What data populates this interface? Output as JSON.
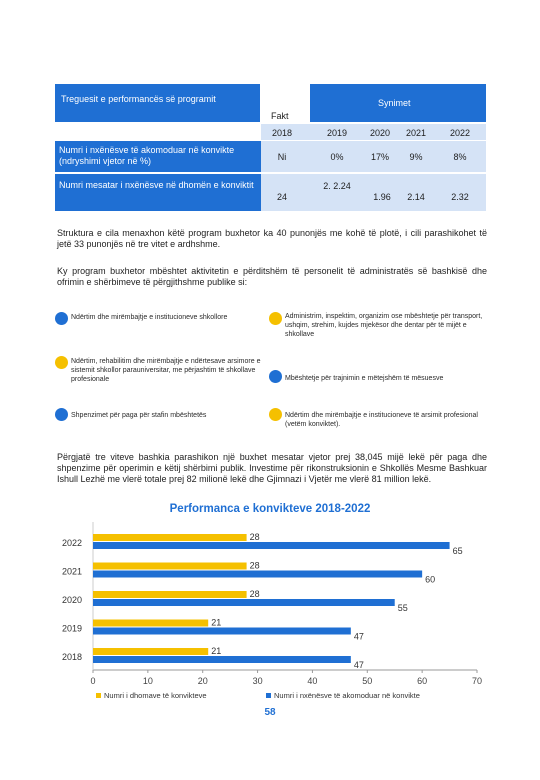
{
  "table": {
    "col_header_left": "Treguesit e performancës së programit",
    "col_header_targets": "Synimet",
    "col_fakt": "Fakt",
    "years": [
      "2018",
      "2019",
      "2020",
      "2021",
      "2022"
    ],
    "rows": [
      {
        "label": "Numri i nxënësve të akomoduar në konvikte (ndryshimi vjetor në %)",
        "values": [
          "Ni",
          "0%",
          "17%",
          "9%",
          "8%"
        ]
      },
      {
        "label": "Numri mesatar i nxënësve në dhomën e konviktit",
        "values": [
          "24",
          "2. 2.24",
          "1.96",
          "2.14",
          "2.32"
        ]
      }
    ]
  },
  "paragraphs": {
    "p1": "Struktura e cila menaxhon këtë program buxhetor ka 40 punonjës me kohë të plotë, i cili parashikohet të jetë 33 punonjës në tre vitet e ardhshme.",
    "p2": "Ky program buxhetor mbështet aktivitetin e përditshëm të personelit të administratës së bashkisë dhe ofrimin e shërbimeve të përgjithshme publike si:",
    "p3": "Përgjatë tre viteve bashkia parashikon një buxhet mesatar vjetor prej 38,045 mijë lekë për paga dhe shpenzime për operimin e këtij shërbimi publik. Investime për rikonstruksionin e Shkollës Mesme Bashkuar Ishull Lezhë me vlerë totale prej 82 milionë lekë dhe Gjimnazi i Vjetër me vlerë 81 million lekë."
  },
  "bullets": [
    {
      "text": "Ndërtim dhe mirëmbajtje e institucioneve shkollore",
      "color": "#1f6fd3"
    },
    {
      "text": "Administrim, inspektim, organizim ose mbështetje për transport, ushqim, strehim, kujdes mjekësor dhe dentar për të mijët e shkollave",
      "color": "#f5c000"
    },
    {
      "text": "Ndërtim, rehabilitim dhe mirëmbajtje e ndërtesave arsimore e sistemit shkollor parauniversitar, me përjashtim të shkollave profesionale",
      "color": "#f5c000"
    },
    {
      "text": "Mbështetje për trajnimin e mëtejshëm të mësuesve",
      "color": "#1f6fd3"
    },
    {
      "text": "Shpenzimet për paga për stafin mbështetës",
      "color": "#1f6fd3"
    },
    {
      "text": "Ndërtim dhe mirëmbajtje e institucioneve të arsimit profesional (vetëm konviktet).",
      "color": "#f5c000"
    }
  ],
  "chart_data": {
    "type": "bar",
    "orientation": "horizontal",
    "title": "Performanca e konvikteve 2018-2022",
    "categories": [
      "2022",
      "2021",
      "2020",
      "2019",
      "2018"
    ],
    "series": [
      {
        "name": "Numri i dhomave të konvikteve",
        "color": "#f5c000",
        "values": [
          28,
          28,
          28,
          21,
          21
        ]
      },
      {
        "name": "Numri i nxënësve të akomoduar në konvikte",
        "color": "#1f6fd3",
        "values": [
          65,
          60,
          55,
          47,
          47
        ]
      }
    ],
    "xlim": [
      0,
      70
    ],
    "xticks": [
      "0",
      "10",
      "20",
      "30",
      "40",
      "50",
      "60",
      "70"
    ],
    "grid": false,
    "legend_position": "bottom"
  },
  "page_number": "58"
}
